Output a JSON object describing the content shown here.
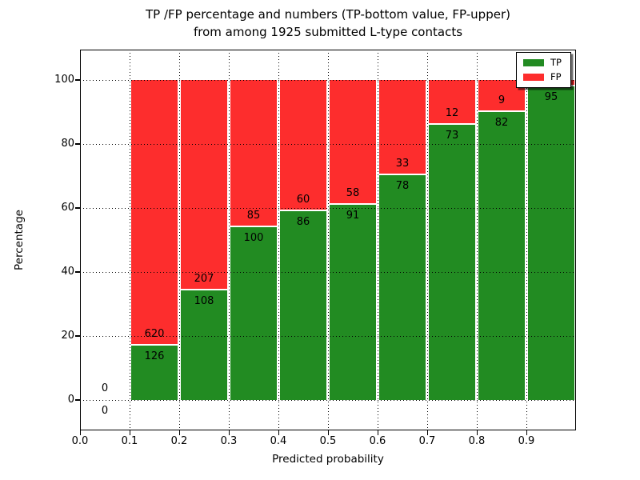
{
  "figure": {
    "title_line1": "TP /FP percentage and numbers (TP-bottom value, FP-upper)",
    "title_line2": "from among 1925 submitted L-type contacts"
  },
  "chart_data": {
    "type": "bar",
    "stacked": true,
    "title": "TP /FP percentage and numbers (TP-bottom value, FP-upper)\nfrom among 1925 submitted L-type contacts",
    "xlabel": "Predicted probability",
    "ylabel": "Percentage",
    "xlim": [
      0.0,
      1.0
    ],
    "ylim": [
      -9.5,
      109.5
    ],
    "grid": true,
    "colors": {
      "tp": "#228b22",
      "fp": "#fd2d2d",
      "separator": "#ffffff",
      "grid": "#000000"
    },
    "legend": {
      "position": "upper right",
      "entries": [
        {
          "label": "TP",
          "color": "#228b22"
        },
        {
          "label": "FP",
          "color": "#fd2d2d"
        }
      ]
    },
    "xticks": [
      {
        "label": "0.0",
        "value": 0.0
      },
      {
        "label": "0.1",
        "value": 0.1
      },
      {
        "label": "0.2",
        "value": 0.2
      },
      {
        "label": "0.3",
        "value": 0.3
      },
      {
        "label": "0.4",
        "value": 0.4
      },
      {
        "label": "0.5",
        "value": 0.5
      },
      {
        "label": "0.6",
        "value": 0.6
      },
      {
        "label": "0.7",
        "value": 0.7
      },
      {
        "label": "0.8",
        "value": 0.8
      },
      {
        "label": "0.9",
        "value": 0.9
      }
    ],
    "yticks": [
      {
        "label": "0",
        "value": 0
      },
      {
        "label": "20",
        "value": 20
      },
      {
        "label": "40",
        "value": 40
      },
      {
        "label": "60",
        "value": 60
      },
      {
        "label": "80",
        "value": 80
      },
      {
        "label": "100",
        "value": 100
      }
    ],
    "bins": [
      {
        "x_start": 0.0,
        "x_end": 0.1,
        "tp_count": "0",
        "fp_count": "0",
        "tp_pct": 0,
        "fp_pct": 0
      },
      {
        "x_start": 0.1,
        "x_end": 0.2,
        "tp_count": "126",
        "fp_count": "620",
        "tp_pct": 16.89,
        "fp_pct": 83.11
      },
      {
        "x_start": 0.2,
        "x_end": 0.3,
        "tp_count": "108",
        "fp_count": "207",
        "tp_pct": 34.29,
        "fp_pct": 65.71
      },
      {
        "x_start": 0.3,
        "x_end": 0.4,
        "tp_count": "100",
        "fp_count": "85",
        "tp_pct": 54.05,
        "fp_pct": 45.95
      },
      {
        "x_start": 0.4,
        "x_end": 0.5,
        "tp_count": "86",
        "fp_count": "60",
        "tp_pct": 58.9,
        "fp_pct": 41.1
      },
      {
        "x_start": 0.5,
        "x_end": 0.6,
        "tp_count": "91",
        "fp_count": "58",
        "tp_pct": 61.07,
        "fp_pct": 38.93
      },
      {
        "x_start": 0.6,
        "x_end": 0.7,
        "tp_count": "78",
        "fp_count": "33",
        "tp_pct": 70.27,
        "fp_pct": 29.73
      },
      {
        "x_start": 0.7,
        "x_end": 0.8,
        "tp_count": "73",
        "fp_count": "12",
        "tp_pct": 85.88,
        "fp_pct": 14.12
      },
      {
        "x_start": 0.8,
        "x_end": 0.9,
        "tp_count": "82",
        "fp_count": "9",
        "tp_pct": 90.11,
        "fp_pct": 9.89
      },
      {
        "x_start": 0.9,
        "x_end": 1.0,
        "tp_count": "95",
        "fp_count": "",
        "tp_pct": 97.94,
        "fp_pct": 2.06
      }
    ]
  }
}
